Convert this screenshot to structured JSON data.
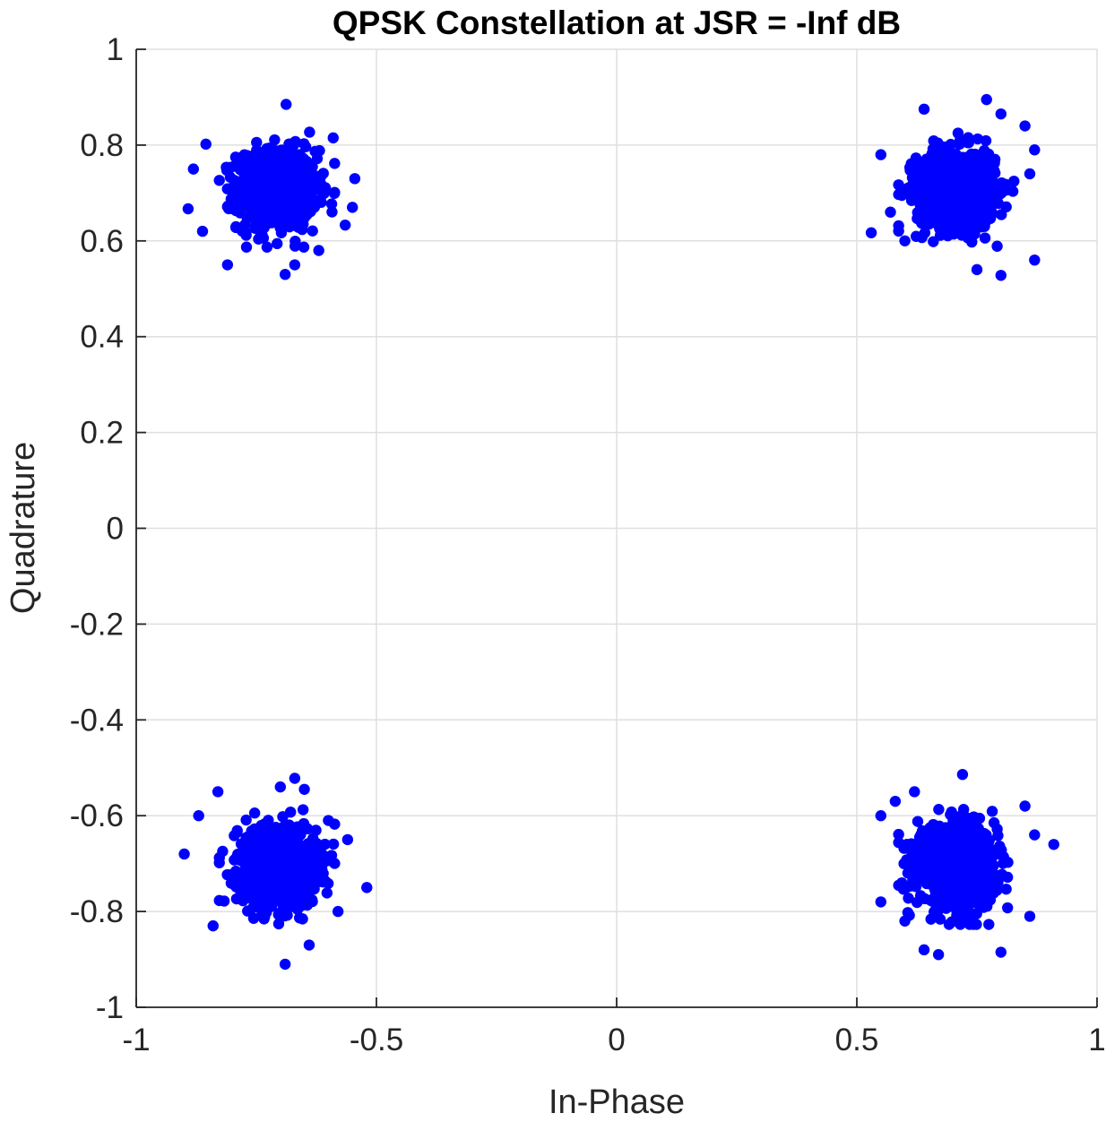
{
  "chart_data": {
    "type": "scatter",
    "title": "QPSK Constellation at JSR = -Inf dB",
    "xlabel": "In-Phase",
    "ylabel": "Quadrature",
    "xlim": [
      -1,
      1
    ],
    "ylim": [
      -1,
      1
    ],
    "xticks": [
      -1,
      -0.5,
      0,
      0.5,
      1
    ],
    "xtick_labels": [
      "-1",
      "-0.5",
      "0",
      "0.5",
      "1"
    ],
    "yticks": [
      -1,
      -0.8,
      -0.6,
      -0.4,
      -0.2,
      0,
      0.2,
      0.4,
      0.6,
      0.8,
      1
    ],
    "ytick_labels": [
      "-1",
      "-0.8",
      "-0.6",
      "-0.4",
      "-0.2",
      "0",
      "0.2",
      "0.4",
      "0.6",
      "0.8",
      "1"
    ],
    "grid": true,
    "marker_color": "#0000ff",
    "series": [
      {
        "clusters": [
          {
            "center": [
              -0.707,
              0.707
            ],
            "spread": 0.05,
            "points": [
              [
                -0.688,
                0.885
              ],
              [
                -0.855,
                0.802
              ],
              [
                -0.881,
                0.75
              ],
              [
                -0.892,
                0.667
              ],
              [
                -0.862,
                0.62
              ],
              [
                -0.81,
                0.55
              ],
              [
                -0.67,
                0.55
              ],
              [
                -0.69,
                0.53
              ],
              [
                -0.545,
                0.73
              ],
              [
                -0.55,
                0.67
              ],
              [
                -0.565,
                0.633
              ],
              [
                -0.62,
                0.58
              ],
              [
                -0.59,
                0.815
              ]
            ]
          },
          {
            "center": [
              0.707,
              0.707
            ],
            "spread": 0.05,
            "points": [
              [
                0.77,
                0.895
              ],
              [
                0.64,
                0.875
              ],
              [
                0.85,
                0.84
              ],
              [
                0.8,
                0.865
              ],
              [
                0.87,
                0.79
              ],
              [
                0.53,
                0.617
              ],
              [
                0.57,
                0.66
              ],
              [
                0.6,
                0.6
              ],
              [
                0.75,
                0.54
              ],
              [
                0.8,
                0.528
              ],
              [
                0.87,
                0.56
              ],
              [
                0.86,
                0.74
              ],
              [
                0.55,
                0.78
              ]
            ]
          },
          {
            "center": [
              -0.707,
              -0.707
            ],
            "spread": 0.05,
            "points": [
              [
                -0.69,
                -0.91
              ],
              [
                -0.67,
                -0.522
              ],
              [
                -0.7,
                -0.54
              ],
              [
                -0.65,
                -0.545
              ],
              [
                -0.52,
                -0.75
              ],
              [
                -0.9,
                -0.68
              ],
              [
                -0.87,
                -0.6
              ],
              [
                -0.83,
                -0.55
              ],
              [
                -0.84,
                -0.83
              ],
              [
                -0.64,
                -0.87
              ],
              [
                -0.58,
                -0.8
              ],
              [
                -0.56,
                -0.65
              ],
              [
                -0.6,
                -0.61
              ]
            ]
          },
          {
            "center": [
              0.707,
              -0.707
            ],
            "spread": 0.05,
            "points": [
              [
                0.91,
                -0.66
              ],
              [
                0.72,
                -0.514
              ],
              [
                0.55,
                -0.6
              ],
              [
                0.58,
                -0.57
              ],
              [
                0.85,
                -0.58
              ],
              [
                0.67,
                -0.89
              ],
              [
                0.8,
                -0.885
              ],
              [
                0.64,
                -0.88
              ],
              [
                0.6,
                -0.82
              ],
              [
                0.86,
                -0.81
              ],
              [
                0.87,
                -0.64
              ],
              [
                0.55,
                -0.78
              ],
              [
                0.62,
                -0.55
              ]
            ]
          }
        ]
      }
    ]
  }
}
